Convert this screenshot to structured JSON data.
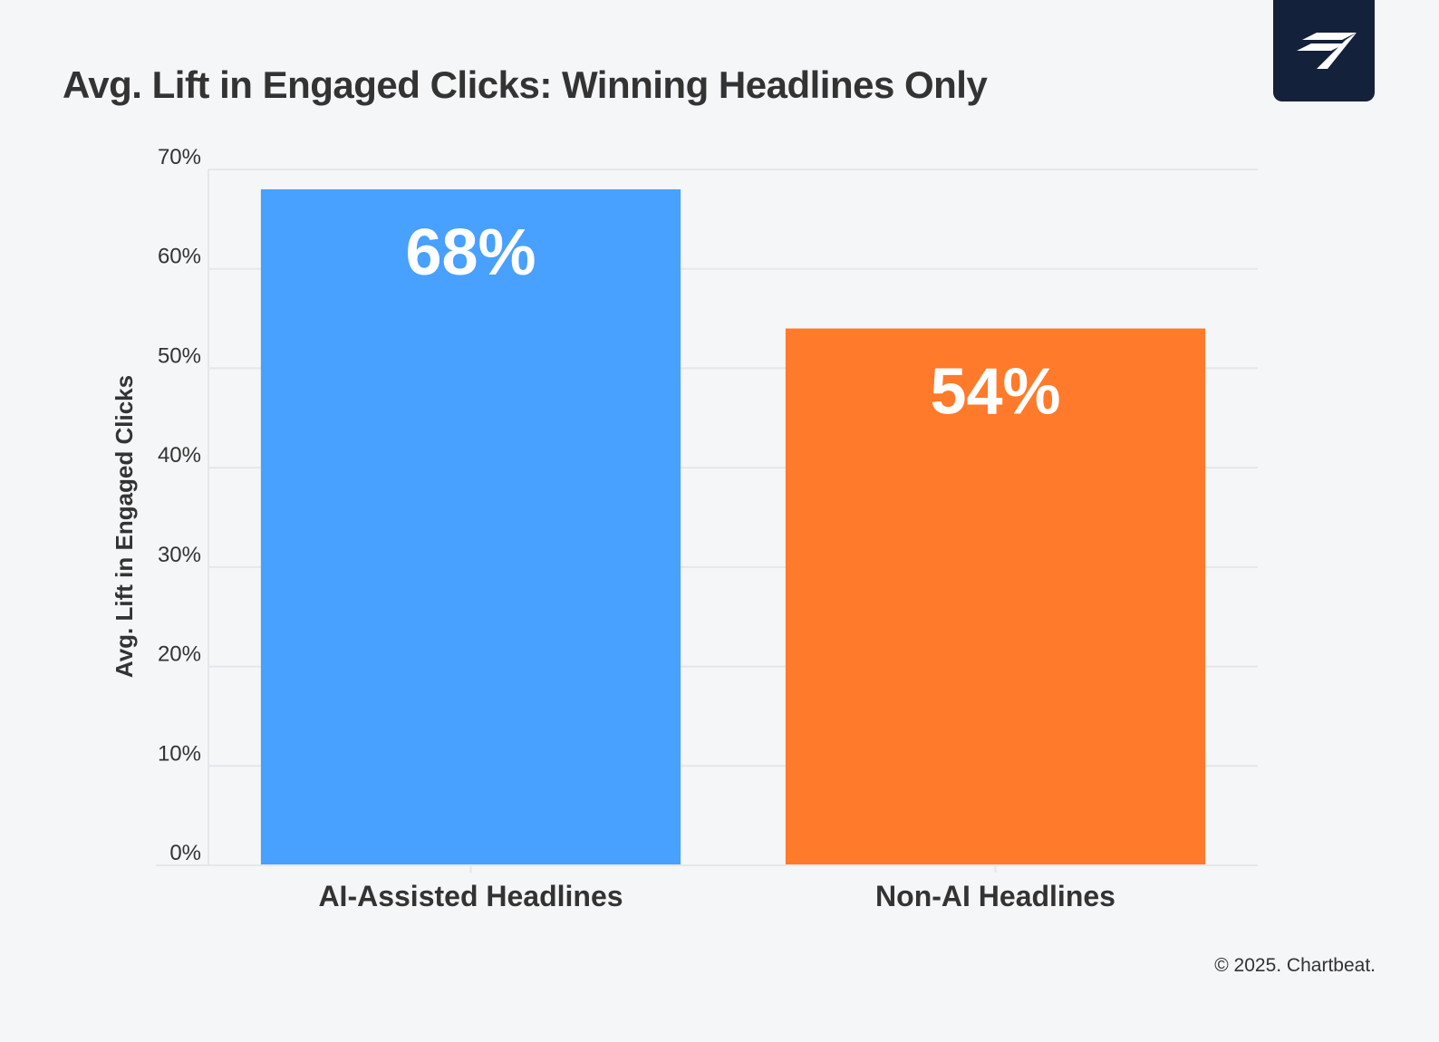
{
  "title": "Avg. Lift in Engaged Clicks: Winning Headlines Only",
  "footer": "© 2025. Chartbeat.",
  "logo": {
    "icon": "chartbeat-logo-icon",
    "background": "#14213a"
  },
  "colors": {
    "background": "#f5f6f8",
    "grid": "#e6e7ea",
    "text": "#333333",
    "bar_label": "#ffffff"
  },
  "chart_data": {
    "type": "bar",
    "title": "Avg. Lift in Engaged Clicks: Winning Headlines Only",
    "xlabel": "",
    "ylabel": "Avg. Lift in Engaged Clicks",
    "categories": [
      "AI-Assisted Headlines",
      "Non-AI Headlines"
    ],
    "values": [
      68,
      54
    ],
    "data_labels": [
      "68%",
      "54%"
    ],
    "bar_colors": [
      "#48a0ff",
      "#ff7a2a"
    ],
    "ylim": [
      0,
      70
    ],
    "yticks": [
      0,
      10,
      20,
      30,
      40,
      50,
      60,
      70
    ],
    "ytick_labels": [
      "0%",
      "10%",
      "20%",
      "30%",
      "40%",
      "50%",
      "60%",
      "70%"
    ],
    "grid": true,
    "legend": "none"
  }
}
